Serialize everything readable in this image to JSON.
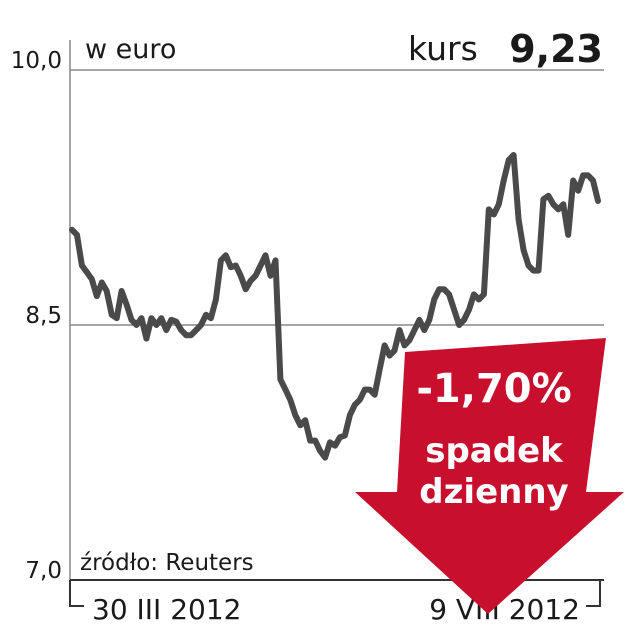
{
  "chart_data": {
    "type": "line",
    "unit_label": "w euro",
    "price_label": "kurs",
    "price": "9,23",
    "source": "źródło: Reuters",
    "annotation": {
      "change": "-1,70%",
      "lines": [
        "spadek",
        "dzienny"
      ]
    },
    "categories": [
      "30 III 2012",
      null,
      null,
      null,
      null,
      null,
      null,
      null,
      null,
      null,
      null,
      null,
      null,
      null,
      null,
      null,
      null,
      null,
      null,
      null,
      null,
      null,
      null,
      null,
      null,
      null,
      null,
      null,
      null,
      null,
      null,
      null,
      null,
      null,
      null,
      null,
      null,
      null,
      null,
      null,
      null,
      null,
      null,
      null,
      null,
      null,
      null,
      null,
      null,
      null,
      null,
      null,
      null,
      null,
      null,
      null,
      null,
      null,
      null,
      null,
      null,
      null,
      null,
      null,
      null,
      null,
      null,
      null,
      null,
      null,
      null,
      null,
      null,
      null,
      null,
      null,
      null,
      null,
      null,
      null,
      null,
      null,
      null,
      null,
      null,
      null,
      null,
      null,
      null,
      null,
      null,
      null,
      null,
      null,
      null,
      null,
      null,
      null,
      null,
      null,
      null,
      null,
      null,
      null,
      null,
      null,
      "9 VIII 2012"
    ],
    "values": [
      9.06,
      9.03,
      8.85,
      8.81,
      8.77,
      8.67,
      8.75,
      8.7,
      8.56,
      8.54,
      8.7,
      8.62,
      8.53,
      8.5,
      8.54,
      8.42,
      8.54,
      8.5,
      8.54,
      8.47,
      8.53,
      8.52,
      8.47,
      8.44,
      8.44,
      8.47,
      8.5,
      8.56,
      8.54,
      8.65,
      8.88,
      8.91,
      8.84,
      8.85,
      8.79,
      8.71,
      8.76,
      8.79,
      8.85,
      8.91,
      8.79,
      8.88,
      8.18,
      8.12,
      8.06,
      7.97,
      7.91,
      7.94,
      7.82,
      7.82,
      7.76,
      7.72,
      7.81,
      7.79,
      7.84,
      7.85,
      7.97,
      8.03,
      8.06,
      8.12,
      8.12,
      8.09,
      8.24,
      8.38,
      8.32,
      8.35,
      8.47,
      8.38,
      8.41,
      8.47,
      8.53,
      8.47,
      8.53,
      8.65,
      8.71,
      8.71,
      8.68,
      8.59,
      8.5,
      8.53,
      8.59,
      8.68,
      8.65,
      8.68,
      9.18,
      9.15,
      9.21,
      9.35,
      9.47,
      9.5,
      9.12,
      8.94,
      8.85,
      8.82,
      8.82,
      9.24,
      9.26,
      9.21,
      9.18,
      9.21,
      9.03,
      9.35,
      9.29,
      9.38,
      9.38,
      9.35,
      9.23
    ],
    "color": "#4a4a4a",
    "ylim": [
      7.0,
      10.0
    ],
    "yticks": [
      {
        "value": 7.0,
        "label": "7,0"
      },
      {
        "value": 8.5,
        "label": "8,5"
      },
      {
        "value": 10.0,
        "label": "10,0"
      }
    ],
    "grid": true
  }
}
